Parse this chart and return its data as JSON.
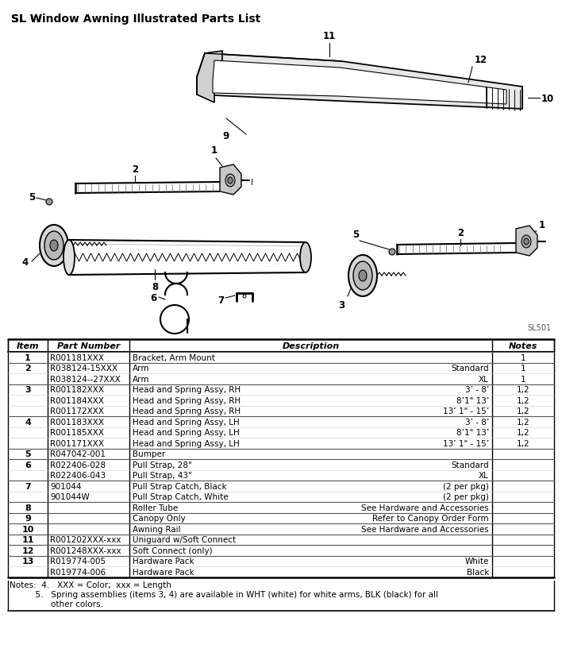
{
  "title": "SL Window Awning Illustrated Parts List",
  "bg_color": "#ffffff",
  "fig_width": 7.08,
  "fig_height": 8.37,
  "diagram_label": "SL501",
  "table_rows": [
    [
      "1",
      "R001181XXX",
      "Bracket, Arm Mount",
      "",
      "1"
    ],
    [
      "2",
      "R038124-15XXX",
      "Arm",
      "Standard",
      "1"
    ],
    [
      "",
      "R038124--27XXX",
      "Arm",
      "XL",
      "1"
    ],
    [
      "3",
      "R001182XXX",
      "Head and Spring Assy, RH",
      "3’ - 8’",
      "1,2"
    ],
    [
      "",
      "R001184XXX",
      "Head and Spring Assy, RH",
      "8’1\" 13’",
      "1,2"
    ],
    [
      "",
      "R001172XXX",
      "Head and Spring Assy, RH",
      "13’ 1\" - 15’",
      "1,2"
    ],
    [
      "4",
      "R001183XXX",
      "Head and Spring Assy, LH",
      "3’ - 8’",
      "1,2"
    ],
    [
      "",
      "R001185XXX",
      "Head and Spring Assy, LH",
      "8’1\" 13’",
      "1,2"
    ],
    [
      "",
      "R001171XXX",
      "Head and Spring Assy, LH",
      "13’ 1\" - 15’",
      "1,2"
    ],
    [
      "5",
      "R047042-001",
      "Bumper",
      "",
      ""
    ],
    [
      "6",
      "R022406-028",
      "Pull Strap, 28\"",
      "Standard",
      ""
    ],
    [
      "",
      "R022406-043",
      "Pull Strap, 43\"",
      "XL",
      ""
    ],
    [
      "7",
      "901044",
      "Pull Strap Catch, Black",
      "(2 per pkg)",
      ""
    ],
    [
      "",
      "901044W",
      "Pull Strap Catch, White",
      "(2 per pkg)",
      ""
    ],
    [
      "8",
      "",
      "Roller Tube",
      "See Hardware and Accessories",
      ""
    ],
    [
      "9",
      "",
      "Canopy Only",
      "Refer to Canopy Order Form",
      ""
    ],
    [
      "10",
      "",
      "Awning Rail",
      "See Hardware and Accessories",
      ""
    ],
    [
      "11",
      "R001202XXX-xxx",
      "Uniguard w/Soft Connect",
      "",
      ""
    ],
    [
      "12",
      "R001248XXX-xxx",
      "Soft Connect (only)",
      "",
      ""
    ],
    [
      "13",
      "R019774-005",
      "Hardware Pack",
      "White",
      ""
    ],
    [
      "",
      "R019774-006",
      "Hardware Pack",
      "Black",
      ""
    ]
  ],
  "notes_line1": "Notes:  4.   XXX = Color;  xxx = Length",
  "notes_line2": "          5.   Spring assemblies (items 3, 4) are available in WHT (white) for white arms, BLK (black) for all",
  "notes_line3": "                other colors."
}
